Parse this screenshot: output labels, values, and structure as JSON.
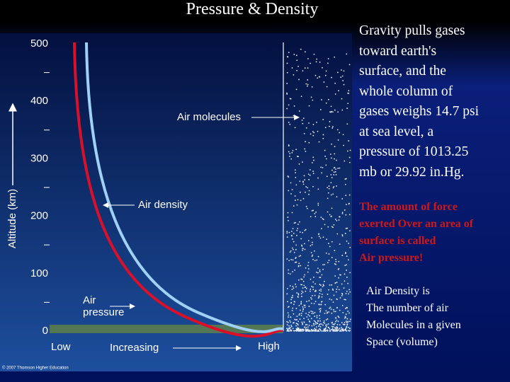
{
  "title": "Pressure & Density",
  "figure": {
    "y_label": "Altitude (km)",
    "yticks": [
      0,
      100,
      200,
      300,
      400,
      500
    ],
    "labels": {
      "molecules": "Air molecules",
      "density": "Air density",
      "pressure": [
        "Air",
        "pressure"
      ]
    },
    "x_labels": {
      "low": "Low",
      "mid": "Increasing",
      "high": "High"
    },
    "credit": "© 2007 Thomson Higher Education"
  },
  "text": {
    "gravity": [
      "Gravity pulls gases",
      "toward earth's",
      "surface, and the",
      "whole column of",
      "gases weighs 14.7 psi",
      "at sea level, a",
      "pressure of 1013.25",
      "mb or 29.92 in.Hg."
    ],
    "force": [
      "The amount of force",
      "exerted Over an area of",
      "surface is called",
      "Air pressure!"
    ],
    "density": [
      "Air Density is",
      "The number of air",
      "Molecules in a given",
      "Space (volume)"
    ]
  }
}
